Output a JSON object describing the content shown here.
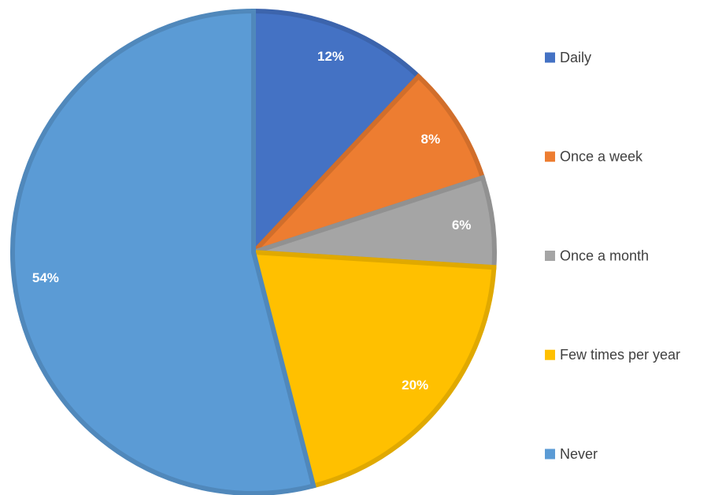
{
  "chart_data": {
    "type": "pie",
    "categories": [
      "Daily",
      "Once a week",
      "Once a month",
      "Few times per year",
      "Never"
    ],
    "values": [
      12,
      8,
      6,
      20,
      54
    ],
    "value_labels": [
      "12%",
      "8%",
      "6%",
      "20%",
      "54%"
    ],
    "colors": [
      "#4472c4",
      "#ed7d31",
      "#a5a5a5",
      "#ffc000",
      "#5b9bd5"
    ],
    "legend": "right"
  }
}
